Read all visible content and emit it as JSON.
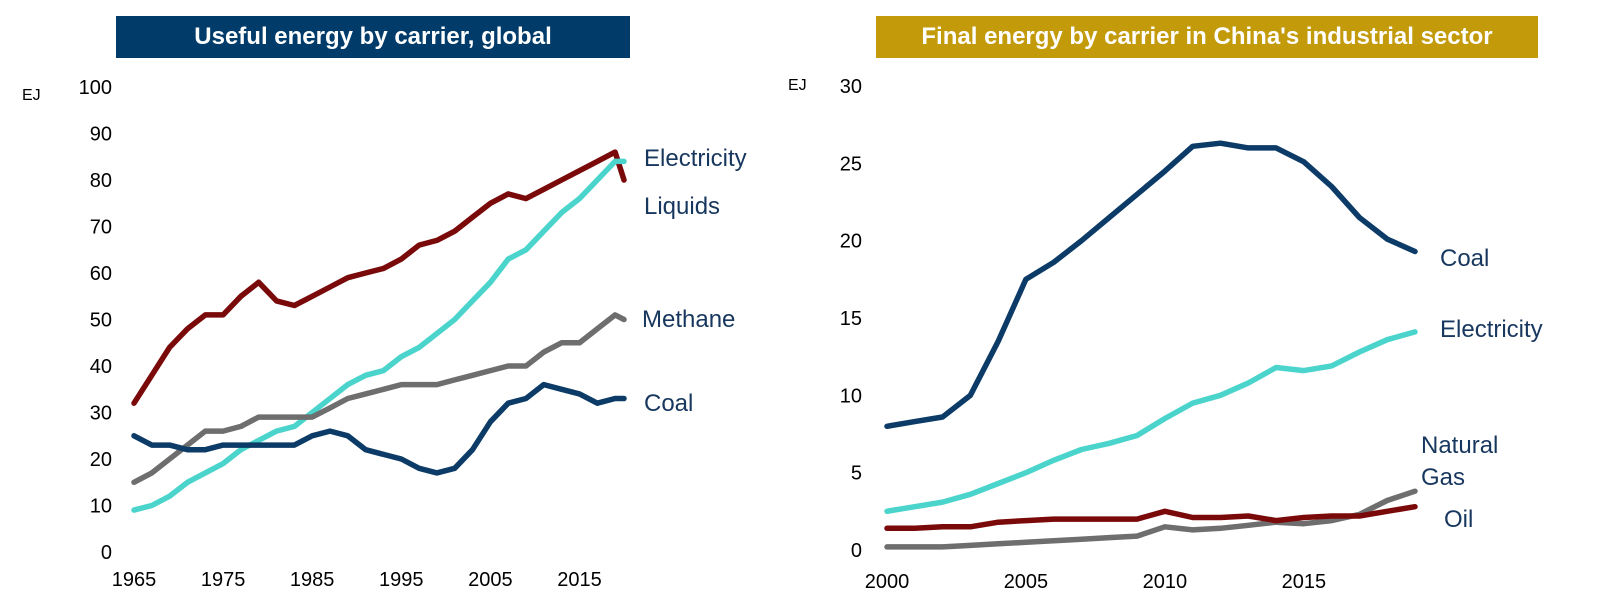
{
  "colors": {
    "coal": "#0b3b66",
    "electricity": "#4ad4cc",
    "liquids_oil": "#7a0a0a",
    "methane_gas": "#6e6e6e",
    "banner_left": "#003b6a",
    "banner_right": "#c39a0a",
    "label_text": "#17375e"
  },
  "chart_data": [
    {
      "type": "line",
      "title": "Useful energy by carrier, global",
      "unit_label": "EJ",
      "xlim": [
        1965,
        2020
      ],
      "ylim": [
        0,
        100
      ],
      "yticks": [
        "0",
        "10",
        "20",
        "30",
        "40",
        "50",
        "60",
        "70",
        "80",
        "90",
        "100"
      ],
      "xticks": [
        "1965",
        "1975",
        "1985",
        "1995",
        "2005",
        "2015"
      ],
      "x": [
        1965,
        1967,
        1969,
        1971,
        1973,
        1975,
        1977,
        1979,
        1981,
        1983,
        1985,
        1987,
        1989,
        1991,
        1993,
        1995,
        1997,
        1999,
        2001,
        2003,
        2005,
        2007,
        2009,
        2011,
        2013,
        2015,
        2017,
        2019,
        2020
      ],
      "series": [
        {
          "key": "liquids",
          "name": "Liquids",
          "color_key": "liquids_oil",
          "values": [
            32,
            38,
            44,
            48,
            51,
            51,
            55,
            58,
            54,
            53,
            55,
            57,
            59,
            60,
            61,
            63,
            66,
            67,
            69,
            72,
            75,
            77,
            76,
            78,
            80,
            82,
            84,
            86,
            80
          ]
        },
        {
          "key": "electricity",
          "name": "Electricity",
          "color_key": "electricity",
          "values": [
            9,
            10,
            12,
            15,
            17,
            19,
            22,
            24,
            26,
            27,
            30,
            33,
            36,
            38,
            39,
            42,
            44,
            47,
            50,
            54,
            58,
            63,
            65,
            69,
            73,
            76,
            80,
            84,
            84
          ]
        },
        {
          "key": "methane",
          "name": "Methane",
          "color_key": "methane_gas",
          "values": [
            15,
            17,
            20,
            23,
            26,
            26,
            27,
            29,
            29,
            29,
            29,
            31,
            33,
            34,
            35,
            36,
            36,
            36,
            37,
            38,
            39,
            40,
            40,
            43,
            45,
            45,
            48,
            51,
            50
          ]
        },
        {
          "key": "coal",
          "name": "Coal",
          "color_key": "coal",
          "values": [
            25,
            23,
            23,
            22,
            22,
            23,
            23,
            23,
            23,
            23,
            25,
            26,
            25,
            22,
            21,
            20,
            18,
            17,
            18,
            22,
            28,
            32,
            33,
            36,
            35,
            34,
            32,
            33,
            33
          ]
        }
      ]
    },
    {
      "type": "line",
      "title": "Final energy by carrier in China's industrial sector",
      "unit_label": "EJ",
      "xlim": [
        2000,
        2019
      ],
      "ylim": [
        0,
        30
      ],
      "yticks": [
        "0",
        "5",
        "10",
        "15",
        "20",
        "25",
        "30"
      ],
      "xticks": [
        "2000",
        "2005",
        "2010",
        "2015"
      ],
      "x": [
        2000,
        2001,
        2002,
        2003,
        2004,
        2005,
        2006,
        2007,
        2008,
        2009,
        2010,
        2011,
        2012,
        2013,
        2014,
        2015,
        2016,
        2017,
        2018,
        2019
      ],
      "series": [
        {
          "key": "coal",
          "name": "Coal",
          "color_key": "coal",
          "values": [
            8.0,
            8.3,
            8.6,
            10.0,
            13.5,
            17.5,
            18.6,
            20.0,
            21.5,
            23.0,
            24.5,
            26.1,
            26.3,
            26.0,
            26.0,
            25.1,
            23.5,
            21.5,
            20.1,
            19.3
          ]
        },
        {
          "key": "electricity",
          "name": "Electricity",
          "color_key": "electricity",
          "values": [
            2.5,
            2.8,
            3.1,
            3.6,
            4.3,
            5.0,
            5.8,
            6.5,
            6.9,
            7.4,
            8.5,
            9.5,
            10.0,
            10.8,
            11.8,
            11.6,
            11.9,
            12.8,
            13.6,
            14.1
          ]
        },
        {
          "key": "natural_gas",
          "name": "Natural Gas",
          "color_key": "methane_gas",
          "values": [
            0.2,
            0.2,
            0.2,
            0.3,
            0.4,
            0.5,
            0.6,
            0.7,
            0.8,
            0.9,
            1.5,
            1.3,
            1.4,
            1.6,
            1.8,
            1.7,
            1.9,
            2.3,
            3.2,
            3.8
          ]
        },
        {
          "key": "oil",
          "name": "Oil",
          "color_key": "liquids_oil",
          "values": [
            1.4,
            1.4,
            1.5,
            1.5,
            1.8,
            1.9,
            2.0,
            2.0,
            2.0,
            2.0,
            2.5,
            2.1,
            2.1,
            2.2,
            1.9,
            2.1,
            2.2,
            2.2,
            2.5,
            2.8
          ]
        }
      ]
    }
  ],
  "labels": {
    "left": {
      "electricity": "Electricity",
      "liquids": "Liquids",
      "methane": "Methane",
      "coal": "Coal"
    },
    "right": {
      "coal": "Coal",
      "electricity": "Electricity",
      "natural_gas_line1": "Natural",
      "natural_gas_line2": "Gas",
      "oil": "Oil"
    }
  }
}
